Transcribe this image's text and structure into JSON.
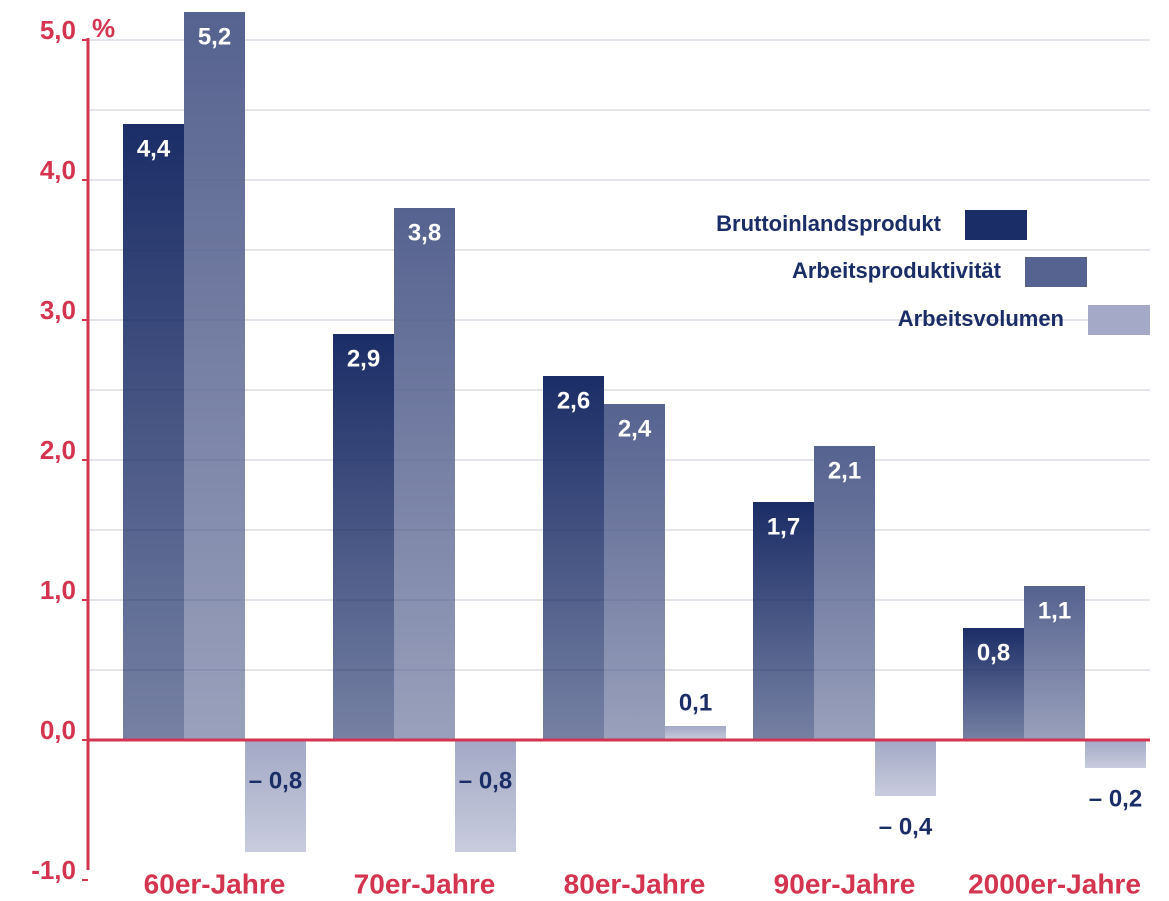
{
  "chart_data": {
    "type": "bar",
    "categories": [
      "60er-Jahre",
      "70er-Jahre",
      "80er-Jahre",
      "90er-Jahre",
      "2000er-Jahre"
    ],
    "series": [
      {
        "name": "Bruttoinlandsprodukt",
        "color": "#1b2d66",
        "values": [
          4.4,
          2.9,
          2.6,
          1.7,
          0.8
        ],
        "value_labels": [
          "4,4",
          "2,9",
          "2,6",
          "1,7",
          "0,8"
        ]
      },
      {
        "name": "Arbeitsproduktivität",
        "color": "#56628f",
        "values": [
          5.2,
          3.8,
          2.4,
          2.1,
          1.1
        ],
        "value_labels": [
          "5,2",
          "3,8",
          "2,4",
          "2,1",
          "1,1"
        ]
      },
      {
        "name": "Arbeitsvolumen",
        "color": "#a3a9c6",
        "values": [
          -0.8,
          -0.8,
          0.1,
          -0.4,
          -0.2
        ],
        "value_labels": [
          "– 0,8",
          "– 0,8",
          "0,1",
          "– 0,4",
          "– 0,2"
        ]
      }
    ],
    "y_unit": "%",
    "ylim": [
      -1,
      5
    ],
    "yticks": [
      {
        "value": -1,
        "label": "-1,0"
      },
      {
        "value": 0,
        "label": "0,0"
      },
      {
        "value": 1,
        "label": "1,0"
      },
      {
        "value": 2,
        "label": "2,0"
      },
      {
        "value": 3,
        "label": "3,0"
      },
      {
        "value": 4,
        "label": "4,0"
      },
      {
        "value": 5,
        "label": "5,0"
      }
    ],
    "grid_yticks": [
      0.5,
      1,
      1.5,
      2,
      2.5,
      3,
      3.5,
      4,
      4.5,
      5
    ],
    "grid": true,
    "legend": "upper right",
    "axis_color": "#d4344f"
  }
}
